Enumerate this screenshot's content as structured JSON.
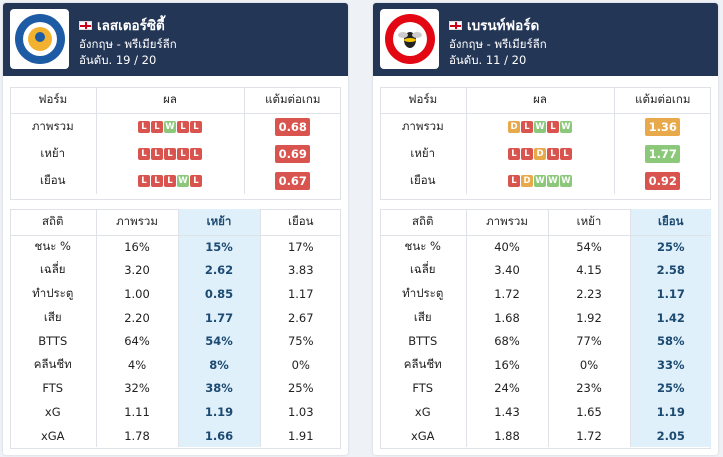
{
  "teams": [
    {
      "name": "เลสเตอร์ซิตี้",
      "league": "อังกฤษ - พรีเมียร์ลีก",
      "rank": "อันดับ. 19 / 20",
      "logo_icon": "leicester-crest-icon",
      "form_headers": [
        "ฟอร์ม",
        "ผล",
        "แต้มต่อเกม"
      ],
      "form_rows": [
        {
          "label": "ภาพรวม",
          "results": [
            "L",
            "L",
            "W",
            "L",
            "L"
          ],
          "ppg": "0.68",
          "color": "#d9534f"
        },
        {
          "label": "เหย้า",
          "results": [
            "L",
            "L",
            "L",
            "L",
            "L"
          ],
          "ppg": "0.69",
          "color": "#d9534f"
        },
        {
          "label": "เยือน",
          "results": [
            "L",
            "L",
            "L",
            "W",
            "L"
          ],
          "ppg": "0.67",
          "color": "#d9534f"
        }
      ],
      "stat_headers": [
        "สถิติ",
        "ภาพรวม",
        "เหย้า",
        "เยือน"
      ],
      "highlight_col": 2,
      "stat_rows": [
        [
          "ชนะ %",
          "16%",
          "15%",
          "17%"
        ],
        [
          "เฉลี่ย",
          "3.20",
          "2.62",
          "3.83"
        ],
        [
          "ทำประตู",
          "1.00",
          "0.85",
          "1.17"
        ],
        [
          "เสีย",
          "2.20",
          "1.77",
          "2.67"
        ],
        [
          "BTTS",
          "64%",
          "54%",
          "75%"
        ],
        [
          "คลีนชีท",
          "4%",
          "8%",
          "0%"
        ],
        [
          "FTS",
          "32%",
          "38%",
          "25%"
        ],
        [
          "xG",
          "1.11",
          "1.19",
          "1.03"
        ],
        [
          "xGA",
          "1.78",
          "1.66",
          "1.91"
        ]
      ]
    },
    {
      "name": "เบรนท์ฟอร์ด",
      "league": "อังกฤษ - พรีเมียร์ลีก",
      "rank": "อันดับ. 11 / 20",
      "logo_icon": "brentford-crest-icon",
      "form_headers": [
        "ฟอร์ม",
        "ผล",
        "แต้มต่อเกม"
      ],
      "form_rows": [
        {
          "label": "ภาพรวม",
          "results": [
            "D",
            "L",
            "W",
            "L",
            "W"
          ],
          "ppg": "1.36",
          "color": "#e8a94b"
        },
        {
          "label": "เหย้า",
          "results": [
            "L",
            "L",
            "D",
            "L",
            "L"
          ],
          "ppg": "1.77",
          "color": "#8cc87a"
        },
        {
          "label": "เยือน",
          "results": [
            "L",
            "D",
            "W",
            "W",
            "W"
          ],
          "ppg": "0.92",
          "color": "#d9534f"
        }
      ],
      "stat_headers": [
        "สถิติ",
        "ภาพรวม",
        "เหย้า",
        "เยือน"
      ],
      "highlight_col": 3,
      "stat_rows": [
        [
          "ชนะ %",
          "40%",
          "54%",
          "25%"
        ],
        [
          "เฉลี่ย",
          "3.40",
          "4.15",
          "2.58"
        ],
        [
          "ทำประตู",
          "1.72",
          "2.23",
          "1.17"
        ],
        [
          "เสีย",
          "1.68",
          "1.92",
          "1.42"
        ],
        [
          "BTTS",
          "68%",
          "77%",
          "58%"
        ],
        [
          "คลีนชีท",
          "16%",
          "0%",
          "33%"
        ],
        [
          "FTS",
          "24%",
          "23%",
          "25%"
        ],
        [
          "xG",
          "1.43",
          "1.65",
          "1.19"
        ],
        [
          "xGA",
          "1.88",
          "1.72",
          "2.05"
        ]
      ]
    }
  ],
  "colors": {
    "header_bg": "#243656",
    "highlight_bg": "#dff0fb",
    "loss": "#d9534f",
    "win": "#8cc87a",
    "draw": "#e8a94b"
  }
}
